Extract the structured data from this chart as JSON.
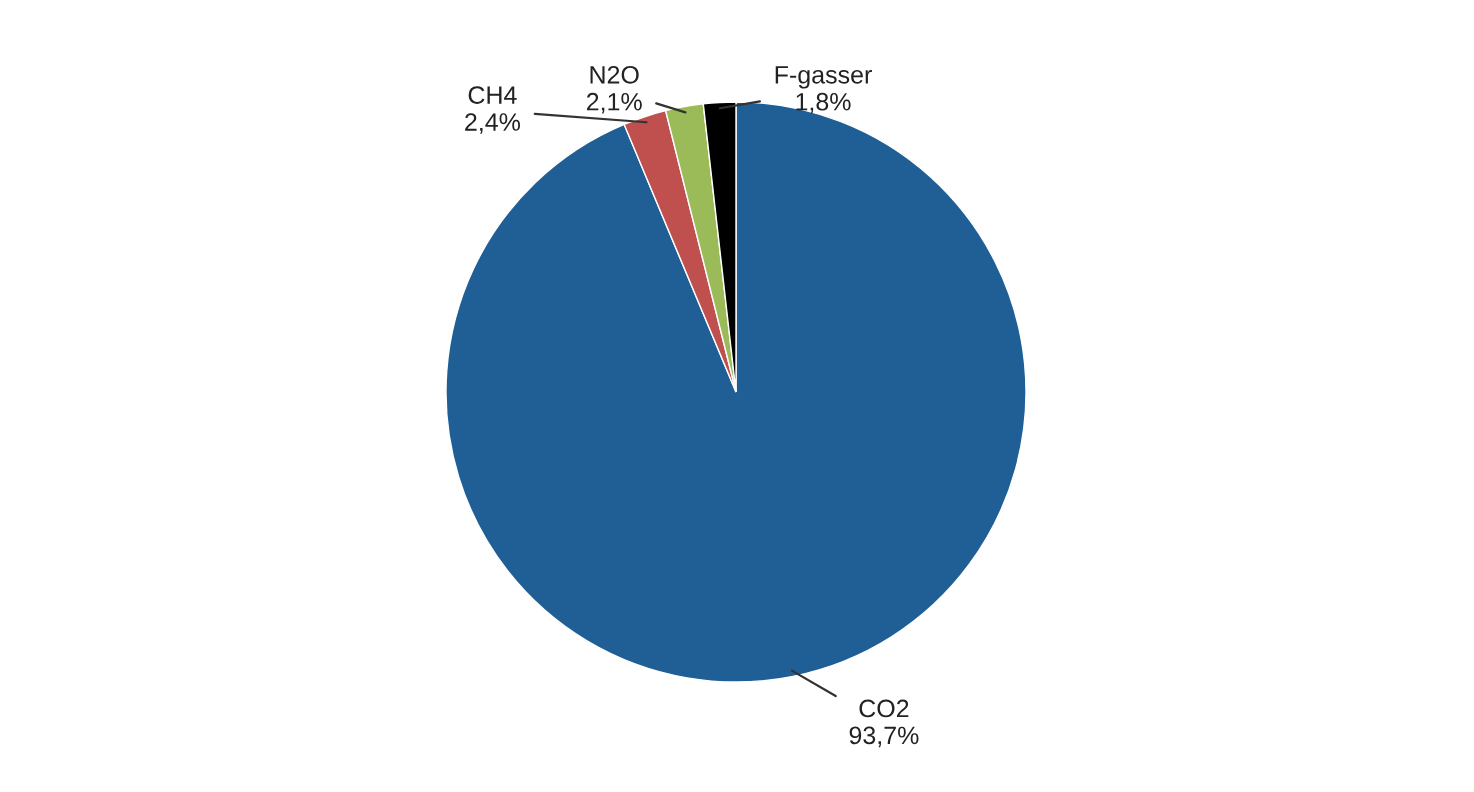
{
  "chart_data": {
    "type": "pie",
    "categories": [
      "CO2",
      "CH4",
      "N2O",
      "F-gasser"
    ],
    "values": [
      93.7,
      2.4,
      2.1,
      1.8
    ],
    "value_labels": [
      "93,7%",
      "2,4%",
      "2,1%",
      "1,8%"
    ],
    "colors": [
      "#1f5f96",
      "#c0504d",
      "#9bbb59",
      "#000000"
    ],
    "legend": false
  }
}
